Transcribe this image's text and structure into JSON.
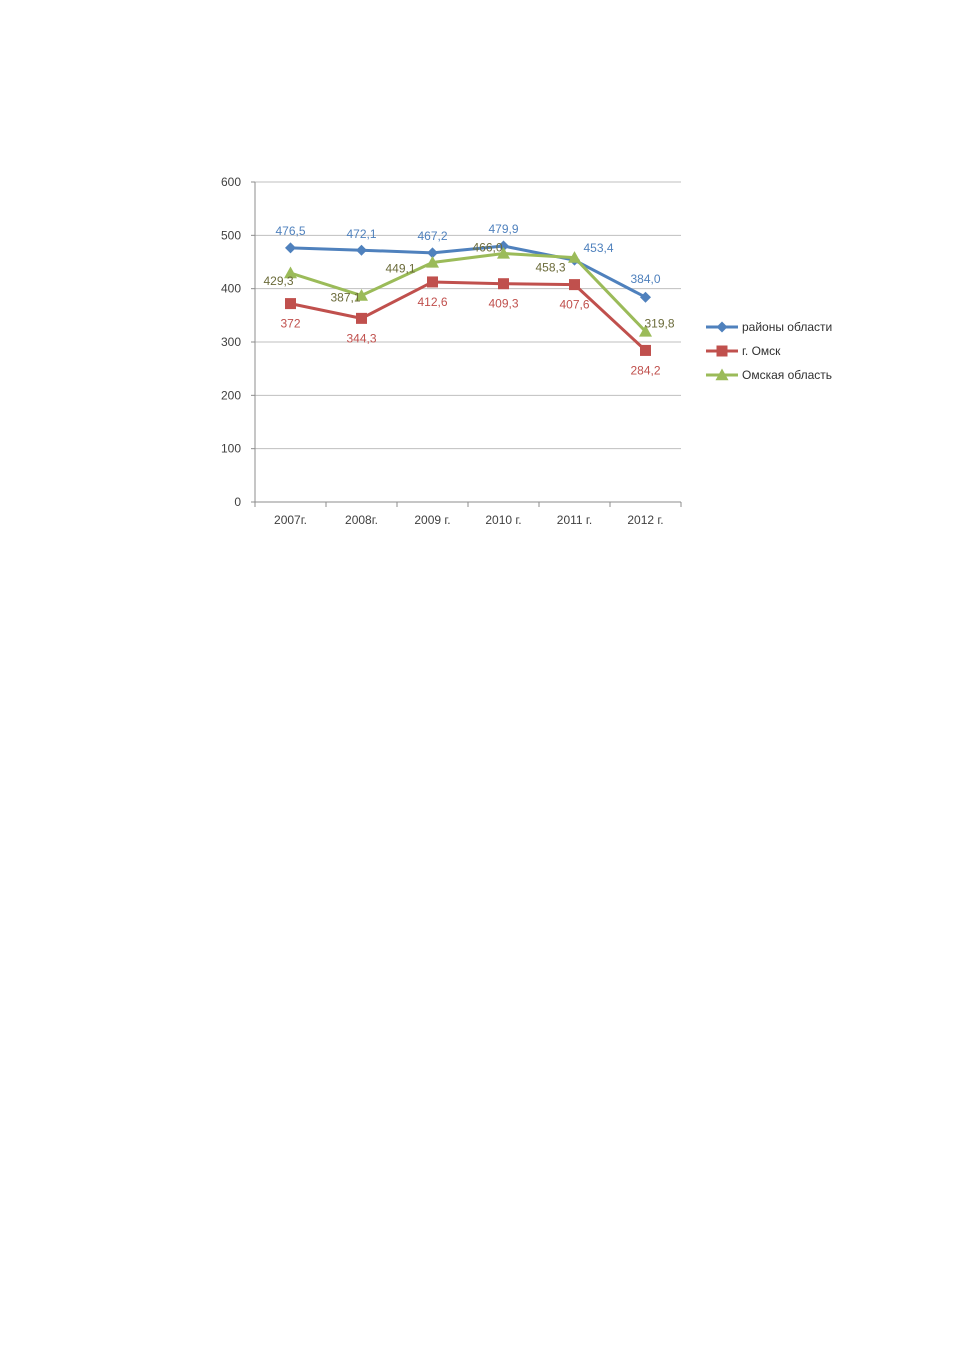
{
  "chart_data": {
    "type": "line",
    "categories": [
      "2007г.",
      "2008г.",
      "2009 г.",
      "2010 г.",
      "2011 г.",
      "2012 г."
    ],
    "ylim": [
      0,
      600
    ],
    "yticks": [
      "0",
      "100",
      "200",
      "300",
      "400",
      "500",
      "600"
    ],
    "ytick_values": [
      0,
      100,
      200,
      300,
      400,
      500,
      600
    ],
    "grid": true,
    "legend_position": "right",
    "series": [
      {
        "name": "районы области",
        "values": [
          476.5,
          472.1,
          467.2,
          479.9,
          453.4,
          384.0
        ],
        "labels": [
          "476,5",
          "472,1",
          "467,2",
          "479,9",
          "453,4",
          "384,0"
        ],
        "color": "#4F81BD",
        "marker": "diamond"
      },
      {
        "name": "г. Омск",
        "values": [
          372,
          344.3,
          412.6,
          409.3,
          407.6,
          284.2
        ],
        "labels": [
          "372",
          "344,3",
          "412,6",
          "409,3",
          "407,6",
          "284,2"
        ],
        "color": "#C0504D",
        "marker": "square"
      },
      {
        "name": "Омская область",
        "values": [
          429.3,
          387.1,
          449.1,
          466.0,
          458.3,
          319.8
        ],
        "labels": [
          "429,3",
          "387,1",
          "449,1",
          "466,0",
          "458,3",
          "319,8"
        ],
        "color": "#9BBB59",
        "label_color": "#6B6B3A",
        "marker": "triangle"
      }
    ]
  }
}
